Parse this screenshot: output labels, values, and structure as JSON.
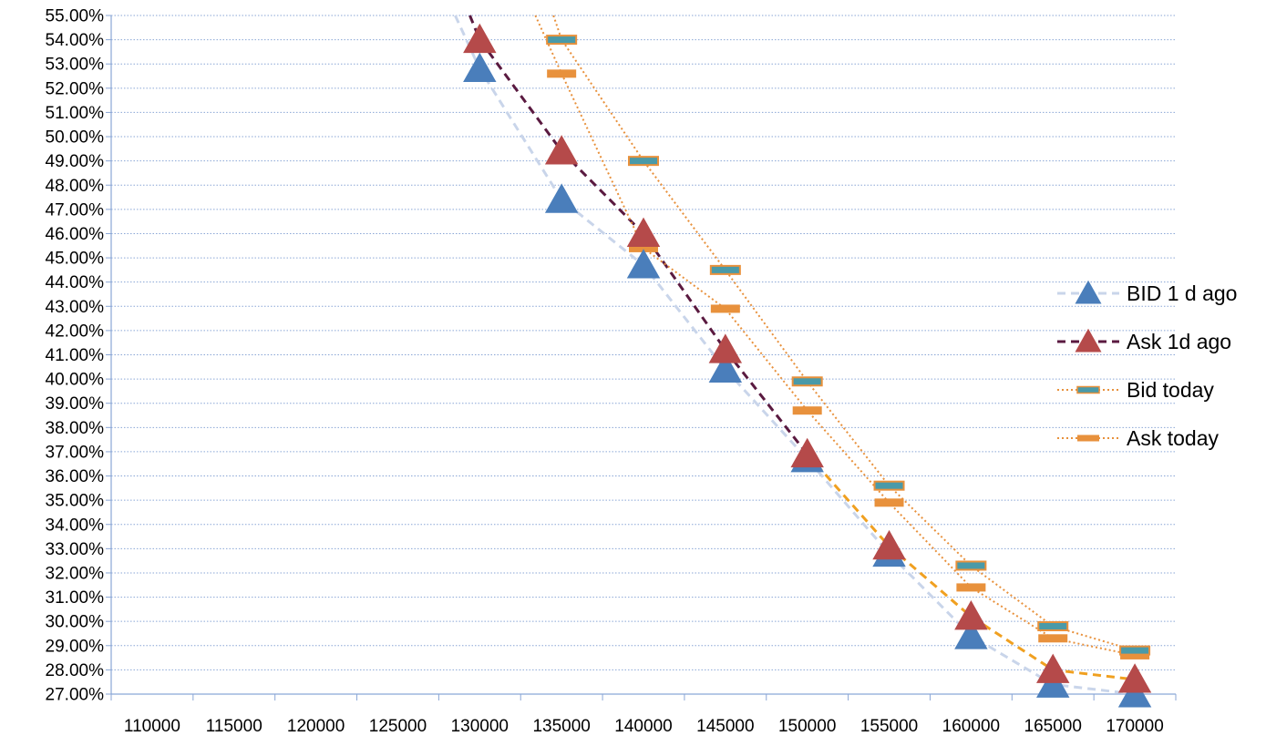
{
  "chart_data": {
    "type": "line",
    "title": "",
    "xlabel": "",
    "ylabel": "",
    "x": [
      110000,
      115000,
      120000,
      125000,
      130000,
      135000,
      140000,
      145000,
      150000,
      155000,
      160000,
      165000,
      170000
    ],
    "x_tick_labels": [
      "110000",
      "115000",
      "120000",
      "125000",
      "130000",
      "135000",
      "140000",
      "145000",
      "150000",
      "155000",
      "160000",
      "165000",
      "170000"
    ],
    "ylim": [
      0.27,
      0.55
    ],
    "y_tick_labels": [
      "27.00%",
      "28.00%",
      "29.00%",
      "30.00%",
      "31.00%",
      "32.00%",
      "33.00%",
      "34.00%",
      "35.00%",
      "36.00%",
      "37.00%",
      "38.00%",
      "39.00%",
      "40.00%",
      "41.00%",
      "42.00%",
      "43.00%",
      "44.00%",
      "45.00%",
      "46.00%",
      "47.00%",
      "48.00%",
      "49.00%",
      "50.00%",
      "51.00%",
      "52.00%",
      "53.00%",
      "54.00%",
      "55.00%"
    ],
    "grid": true,
    "legend_position": "right",
    "series": [
      {
        "name": "BID 1 d ago",
        "marker": "triangle",
        "marker_color": "#4a7ebb",
        "line_color": "#c9d5ea",
        "line_style": "dashed",
        "line_extends_to": [
          128500,
          0.55
        ],
        "points": [
          [
            130000,
            0.528
          ],
          [
            135000,
            0.474
          ],
          [
            140000,
            0.447
          ],
          [
            145000,
            0.404
          ],
          [
            150000,
            0.367
          ],
          [
            155000,
            0.328
          ],
          [
            160000,
            0.294
          ],
          [
            165000,
            0.274
          ],
          [
            170000,
            0.27
          ]
        ]
      },
      {
        "name": "Ask 1d ago",
        "marker": "triangle",
        "marker_color": "#b54a4a",
        "line_color": "#5a1a40",
        "line_style": "dashed",
        "line_color_lower": "#f0a020",
        "line_extends_to": [
          129400,
          0.55
        ],
        "points": [
          [
            130000,
            0.54
          ],
          [
            135000,
            0.494
          ],
          [
            140000,
            0.46
          ],
          [
            145000,
            0.412
          ],
          [
            150000,
            0.369
          ],
          [
            155000,
            0.331
          ],
          [
            160000,
            0.302
          ],
          [
            165000,
            0.28
          ],
          [
            170000,
            0.276
          ]
        ]
      },
      {
        "name": "Bid today",
        "marker": "dash",
        "marker_color": "#4a9aa8",
        "marker_border": "#e8913c",
        "line_color": "#e8913c",
        "line_style": "dotted",
        "line_extends_to": [
          134500,
          0.55
        ],
        "points": [
          [
            135000,
            0.54
          ],
          [
            140000,
            0.49
          ],
          [
            145000,
            0.445
          ],
          [
            150000,
            0.399
          ],
          [
            155000,
            0.356
          ],
          [
            160000,
            0.323
          ],
          [
            165000,
            0.298
          ],
          [
            170000,
            0.288
          ]
        ]
      },
      {
        "name": "Ask today",
        "marker": "dash",
        "marker_color": "#e8913c",
        "line_color": "#e8913c",
        "line_style": "dotted",
        "line_extends_to": [
          133400,
          0.55
        ],
        "points": [
          [
            135000,
            0.526
          ],
          [
            140000,
            0.454
          ],
          [
            145000,
            0.429
          ],
          [
            150000,
            0.387
          ],
          [
            155000,
            0.349
          ],
          [
            160000,
            0.314
          ],
          [
            165000,
            0.293
          ],
          [
            170000,
            0.286
          ]
        ]
      }
    ]
  }
}
